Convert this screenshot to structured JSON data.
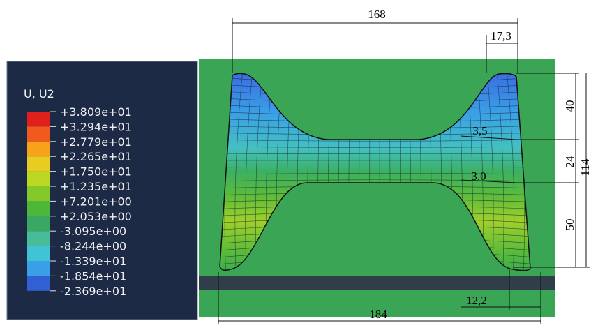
{
  "legend": {
    "title": "U, U2",
    "labels": [
      "+3.809e+01",
      "+3.294e+01",
      "+2.779e+01",
      "+2.265e+01",
      "+1.750e+01",
      "+1.235e+01",
      "+7.201e+00",
      "+2.053e+00",
      "-3.095e+00",
      "-8.244e+00",
      "-1.339e+01",
      "-1.854e+01",
      "-2.369e+01"
    ],
    "colors": [
      "#e0201b",
      "#f05a1e",
      "#f7a21a",
      "#e8cc20",
      "#bcd822",
      "#84c82a",
      "#4cb83a",
      "#3aa862",
      "#48bc98",
      "#40c4d4",
      "#3a9ee8",
      "#3060d4",
      "#2a3aa8"
    ]
  },
  "dimensions": {
    "top_width": "168",
    "top_flange": "17,3",
    "upper_height": "40",
    "middle_height": "24",
    "total_height": "114",
    "lower_height": "50",
    "upper_offset": "3,5",
    "lower_offset": "3,0",
    "bottom_flange": "12,2",
    "bottom_width": "184"
  }
}
